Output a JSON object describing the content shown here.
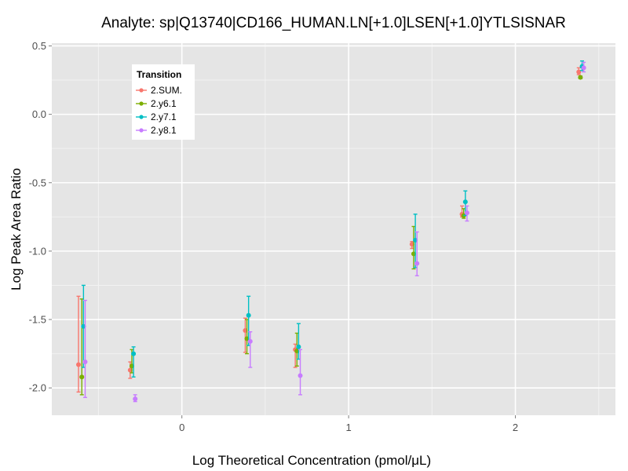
{
  "chart_data": {
    "type": "scatter",
    "title": "Analyte: sp|Q13740|CD166_HUMAN.LN[+1.0]LSEN[+1.0]YTLSISNAR",
    "xlabel": "Log Theoretical Concentration (pmol/μL)",
    "ylabel": "Log Peak Area Ratio",
    "xlim": [
      -0.78,
      2.6
    ],
    "ylim": [
      -2.2,
      0.52
    ],
    "x_ticks": [
      0,
      1,
      2
    ],
    "x_tick_labels": [
      "0",
      "1",
      "2"
    ],
    "y_ticks": [
      0.5,
      0.0,
      -0.5,
      -1.0,
      -1.5,
      -2.0
    ],
    "y_tick_labels": [
      "0.5",
      "0.0",
      "-0.5",
      "-1.0",
      "-1.5",
      "-2.0"
    ],
    "grid": true,
    "legend": {
      "title": "Transition",
      "placement": "top-left",
      "entries": [
        "2.SUM.",
        "2.y6.1",
        "2.y7.1",
        "2.y8.1"
      ]
    },
    "series": [
      {
        "name": "2.SUM.",
        "color": "#f8766d",
        "points": [
          {
            "x": -0.62,
            "y": -1.83,
            "lo": -2.03,
            "hi": -1.33
          },
          {
            "x": -0.31,
            "y": -1.87,
            "lo": -1.93,
            "hi": -1.81
          },
          {
            "x": 0.38,
            "y": -1.58,
            "lo": -1.74,
            "hi": -1.49
          },
          {
            "x": 0.68,
            "y": -1.72,
            "lo": -1.85,
            "hi": -1.68
          },
          {
            "x": 1.38,
            "y": -0.95,
            "lo": -0.98,
            "hi": -0.93
          },
          {
            "x": 1.68,
            "y": -0.73,
            "lo": -0.75,
            "hi": -0.67
          },
          {
            "x": 2.38,
            "y": 0.31,
            "lo": 0.29,
            "hi": 0.34
          }
        ]
      },
      {
        "name": "2.y6.1",
        "color": "#7cae00",
        "points": [
          {
            "x": -0.6,
            "y": -1.92,
            "lo": -2.05,
            "hi": -1.35
          },
          {
            "x": -0.3,
            "y": -1.84,
            "lo": -1.89,
            "hi": -1.72
          },
          {
            "x": 0.39,
            "y": -1.64,
            "lo": -1.75,
            "hi": -1.5
          },
          {
            "x": 0.69,
            "y": -1.73,
            "lo": -1.84,
            "hi": -1.6
          },
          {
            "x": 1.39,
            "y": -1.02,
            "lo": -1.13,
            "hi": -0.82
          },
          {
            "x": 1.69,
            "y": -0.74,
            "lo": -0.76,
            "hi": -0.69
          },
          {
            "x": 2.39,
            "y": 0.27,
            "lo": 0.26,
            "hi": 0.28
          }
        ]
      },
      {
        "name": "2.y7.1",
        "color": "#00bfc4",
        "points": [
          {
            "x": -0.59,
            "y": -1.55,
            "lo": -1.85,
            "hi": -1.25
          },
          {
            "x": -0.29,
            "y": -1.75,
            "lo": -1.92,
            "hi": -1.7
          },
          {
            "x": 0.4,
            "y": -1.47,
            "lo": -1.69,
            "hi": -1.33
          },
          {
            "x": 0.7,
            "y": -1.7,
            "lo": -1.79,
            "hi": -1.53
          },
          {
            "x": 1.4,
            "y": -0.92,
            "lo": -1.12,
            "hi": -0.73
          },
          {
            "x": 1.7,
            "y": -0.64,
            "lo": -0.74,
            "hi": -0.56
          },
          {
            "x": 2.4,
            "y": 0.35,
            "lo": 0.32,
            "hi": 0.39
          }
        ]
      },
      {
        "name": "2.y8.1",
        "color": "#c77cff",
        "points": [
          {
            "x": -0.58,
            "y": -1.81,
            "lo": -2.07,
            "hi": -1.36
          },
          {
            "x": -0.28,
            "y": -2.08,
            "lo": -2.1,
            "hi": -2.05
          },
          {
            "x": 0.41,
            "y": -1.66,
            "lo": -1.85,
            "hi": -1.59
          },
          {
            "x": 0.71,
            "y": -1.91,
            "lo": -2.05,
            "hi": -1.72
          },
          {
            "x": 1.41,
            "y": -1.09,
            "lo": -1.18,
            "hi": -0.86
          },
          {
            "x": 1.71,
            "y": -0.72,
            "lo": -0.78,
            "hi": -0.67
          },
          {
            "x": 2.41,
            "y": 0.34,
            "lo": 0.31,
            "hi": 0.38
          }
        ]
      }
    ]
  }
}
